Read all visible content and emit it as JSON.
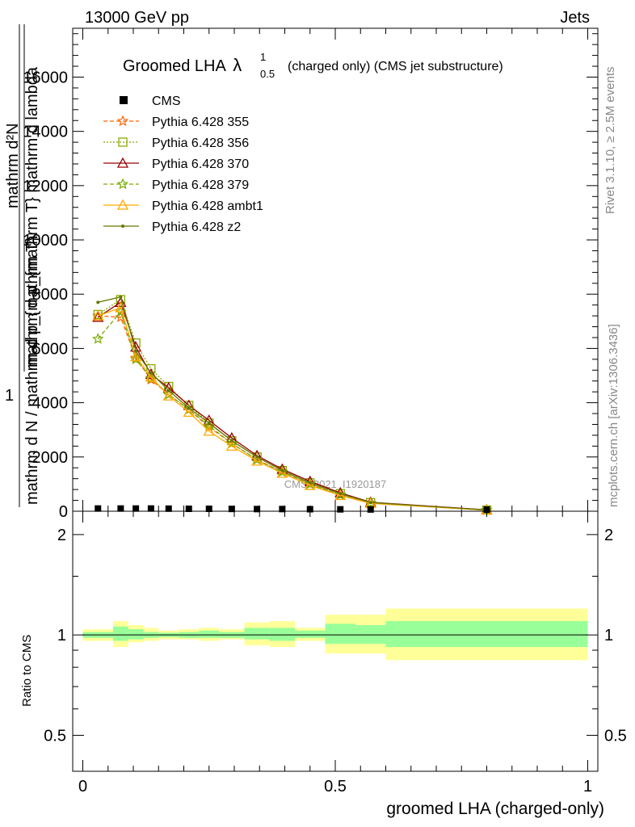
{
  "header": {
    "energy_label": "13000 GeV pp",
    "process_label": "Jets",
    "rivet_label": "Rivet 3.1.10, ≥ 2.5M events",
    "mcplots_label": "mcplots.cern.ch [arXiv:1306.3436]",
    "analysis_watermark": "CMS_2021_I1920187"
  },
  "chart_data": [
    {
      "type": "line",
      "title_main": "Groomed LHA",
      "title_lambda": "λ",
      "title_sup": "1",
      "title_sub": "0.5",
      "title_rest": "(charged only) (CMS jet substructure)",
      "ylabel_top": "mathrm d²N",
      "ylabel_mid": "mathrm d p_{mathrm T} mathrm d lambda",
      "ylabel_one": "1",
      "ylabel_bottom": "mathrm d N / mathrm d p_{mathrm T}",
      "xlim": [
        -0.02,
        1.02
      ],
      "ylim": [
        0,
        17800
      ],
      "yticks": [
        {
          "v": 0,
          "label": "0"
        },
        {
          "v": 2000,
          "label": "2000"
        },
        {
          "v": 4000,
          "label": "4000"
        },
        {
          "v": 6000,
          "label": "6000"
        },
        {
          "v": 8000,
          "label": "8000"
        },
        {
          "v": 10000,
          "label": "10000"
        },
        {
          "v": 12000,
          "label": "12000"
        },
        {
          "v": 14000,
          "label": "14000"
        },
        {
          "v": 16000,
          "label": "16000"
        }
      ],
      "x": [
        0.03,
        0.075,
        0.105,
        0.135,
        0.17,
        0.21,
        0.25,
        0.295,
        0.345,
        0.395,
        0.45,
        0.51,
        0.57,
        0.8
      ],
      "cms": [
        40,
        40,
        40,
        40,
        35,
        30,
        30,
        25,
        20,
        20,
        15,
        10,
        5,
        2
      ],
      "legend_position": "top-left",
      "series": [
        {
          "name": "Pythia 6.428 355",
          "color": "#ff6600",
          "dash": "5,3",
          "marker": "star",
          "values": [
            7200,
            7150,
            5650,
            4850,
            4300,
            3750,
            3100,
            2500,
            1900,
            1450,
            1000,
            600,
            300,
            40
          ]
        },
        {
          "name": "Pythia 6.428 356",
          "color": "#88aa00",
          "dash": "2,2",
          "marker": "square",
          "values": [
            7250,
            7800,
            6200,
            5250,
            4600,
            3900,
            3250,
            2600,
            2000,
            1500,
            1050,
            650,
            320,
            45
          ]
        },
        {
          "name": "Pythia 6.428 370",
          "color": "#990000",
          "dash": "",
          "marker": "triangle",
          "values": [
            7150,
            7700,
            6050,
            5050,
            4550,
            3900,
            3350,
            2700,
            2050,
            1550,
            1100,
            680,
            330,
            50
          ]
        },
        {
          "name": "Pythia 6.428 379",
          "color": "#77aa00",
          "dash": "5,3",
          "marker": "star",
          "values": [
            6350,
            7350,
            5600,
            4900,
            4300,
            3750,
            3150,
            2500,
            1900,
            1450,
            1000,
            600,
            300,
            40
          ]
        },
        {
          "name": "Pythia 6.428 ambt1",
          "color": "#ffaa00",
          "dash": "",
          "marker": "triangle",
          "values": [
            7200,
            7500,
            5700,
            4950,
            4250,
            3650,
            2950,
            2400,
            1850,
            1400,
            950,
            580,
            290,
            40
          ]
        },
        {
          "name": "Pythia 6.428 z2",
          "color": "#667700",
          "dash": "",
          "marker": "dot",
          "values": [
            7700,
            7900,
            5900,
            5100,
            4450,
            3800,
            3250,
            2600,
            2000,
            1500,
            1050,
            650,
            320,
            45
          ]
        }
      ]
    },
    {
      "type": "area",
      "ylabel": "Ratio to CMS",
      "xlabel": "groomed LHA (charged-only)",
      "xlim": [
        -0.02,
        1.02
      ],
      "ylim": [
        0.39,
        2.35
      ],
      "log_y": true,
      "yticks": [
        {
          "v": 0.5,
          "label": "0.5"
        },
        {
          "v": 1,
          "label": "1"
        },
        {
          "v": 2,
          "label": "2"
        }
      ],
      "xticks": [
        {
          "v": 0,
          "label": "0"
        },
        {
          "v": 0.5,
          "label": "0.5"
        },
        {
          "v": 1,
          "label": "1"
        }
      ],
      "bins": [
        {
          "lo": 0.0,
          "hi": 0.06,
          "g_lo": 0.98,
          "g_hi": 1.02,
          "y_lo": 0.96,
          "y_hi": 1.04
        },
        {
          "lo": 0.06,
          "hi": 0.09,
          "g_lo": 0.96,
          "g_hi": 1.06,
          "y_lo": 0.92,
          "y_hi": 1.1
        },
        {
          "lo": 0.09,
          "hi": 0.12,
          "g_lo": 0.97,
          "g_hi": 1.04,
          "y_lo": 0.95,
          "y_hi": 1.07
        },
        {
          "lo": 0.12,
          "hi": 0.15,
          "g_lo": 0.98,
          "g_hi": 1.02,
          "y_lo": 0.96,
          "y_hi": 1.05
        },
        {
          "lo": 0.15,
          "hi": 0.19,
          "g_lo": 0.985,
          "g_hi": 1.015,
          "y_lo": 0.97,
          "y_hi": 1.03
        },
        {
          "lo": 0.19,
          "hi": 0.23,
          "g_lo": 0.98,
          "g_hi": 1.02,
          "y_lo": 0.97,
          "y_hi": 1.04
        },
        {
          "lo": 0.23,
          "hi": 0.27,
          "g_lo": 0.98,
          "g_hi": 1.03,
          "y_lo": 0.96,
          "y_hi": 1.05
        },
        {
          "lo": 0.27,
          "hi": 0.32,
          "g_lo": 0.98,
          "g_hi": 1.02,
          "y_lo": 0.97,
          "y_hi": 1.04
        },
        {
          "lo": 0.32,
          "hi": 0.37,
          "g_lo": 0.97,
          "g_hi": 1.05,
          "y_lo": 0.93,
          "y_hi": 1.09
        },
        {
          "lo": 0.37,
          "hi": 0.42,
          "g_lo": 0.96,
          "g_hi": 1.05,
          "y_lo": 0.92,
          "y_hi": 1.1
        },
        {
          "lo": 0.42,
          "hi": 0.48,
          "g_lo": 0.98,
          "g_hi": 1.03,
          "y_lo": 0.96,
          "y_hi": 1.05
        },
        {
          "lo": 0.48,
          "hi": 0.54,
          "g_lo": 0.94,
          "g_hi": 1.08,
          "y_lo": 0.88,
          "y_hi": 1.15
        },
        {
          "lo": 0.54,
          "hi": 0.6,
          "g_lo": 0.94,
          "g_hi": 1.07,
          "y_lo": 0.88,
          "y_hi": 1.15
        },
        {
          "lo": 0.6,
          "hi": 1.0,
          "g_lo": 0.92,
          "g_hi": 1.1,
          "y_lo": 0.84,
          "y_hi": 1.2
        }
      ],
      "band_colors": {
        "inner": "#99ff99",
        "outer": "#ffff99"
      }
    }
  ]
}
